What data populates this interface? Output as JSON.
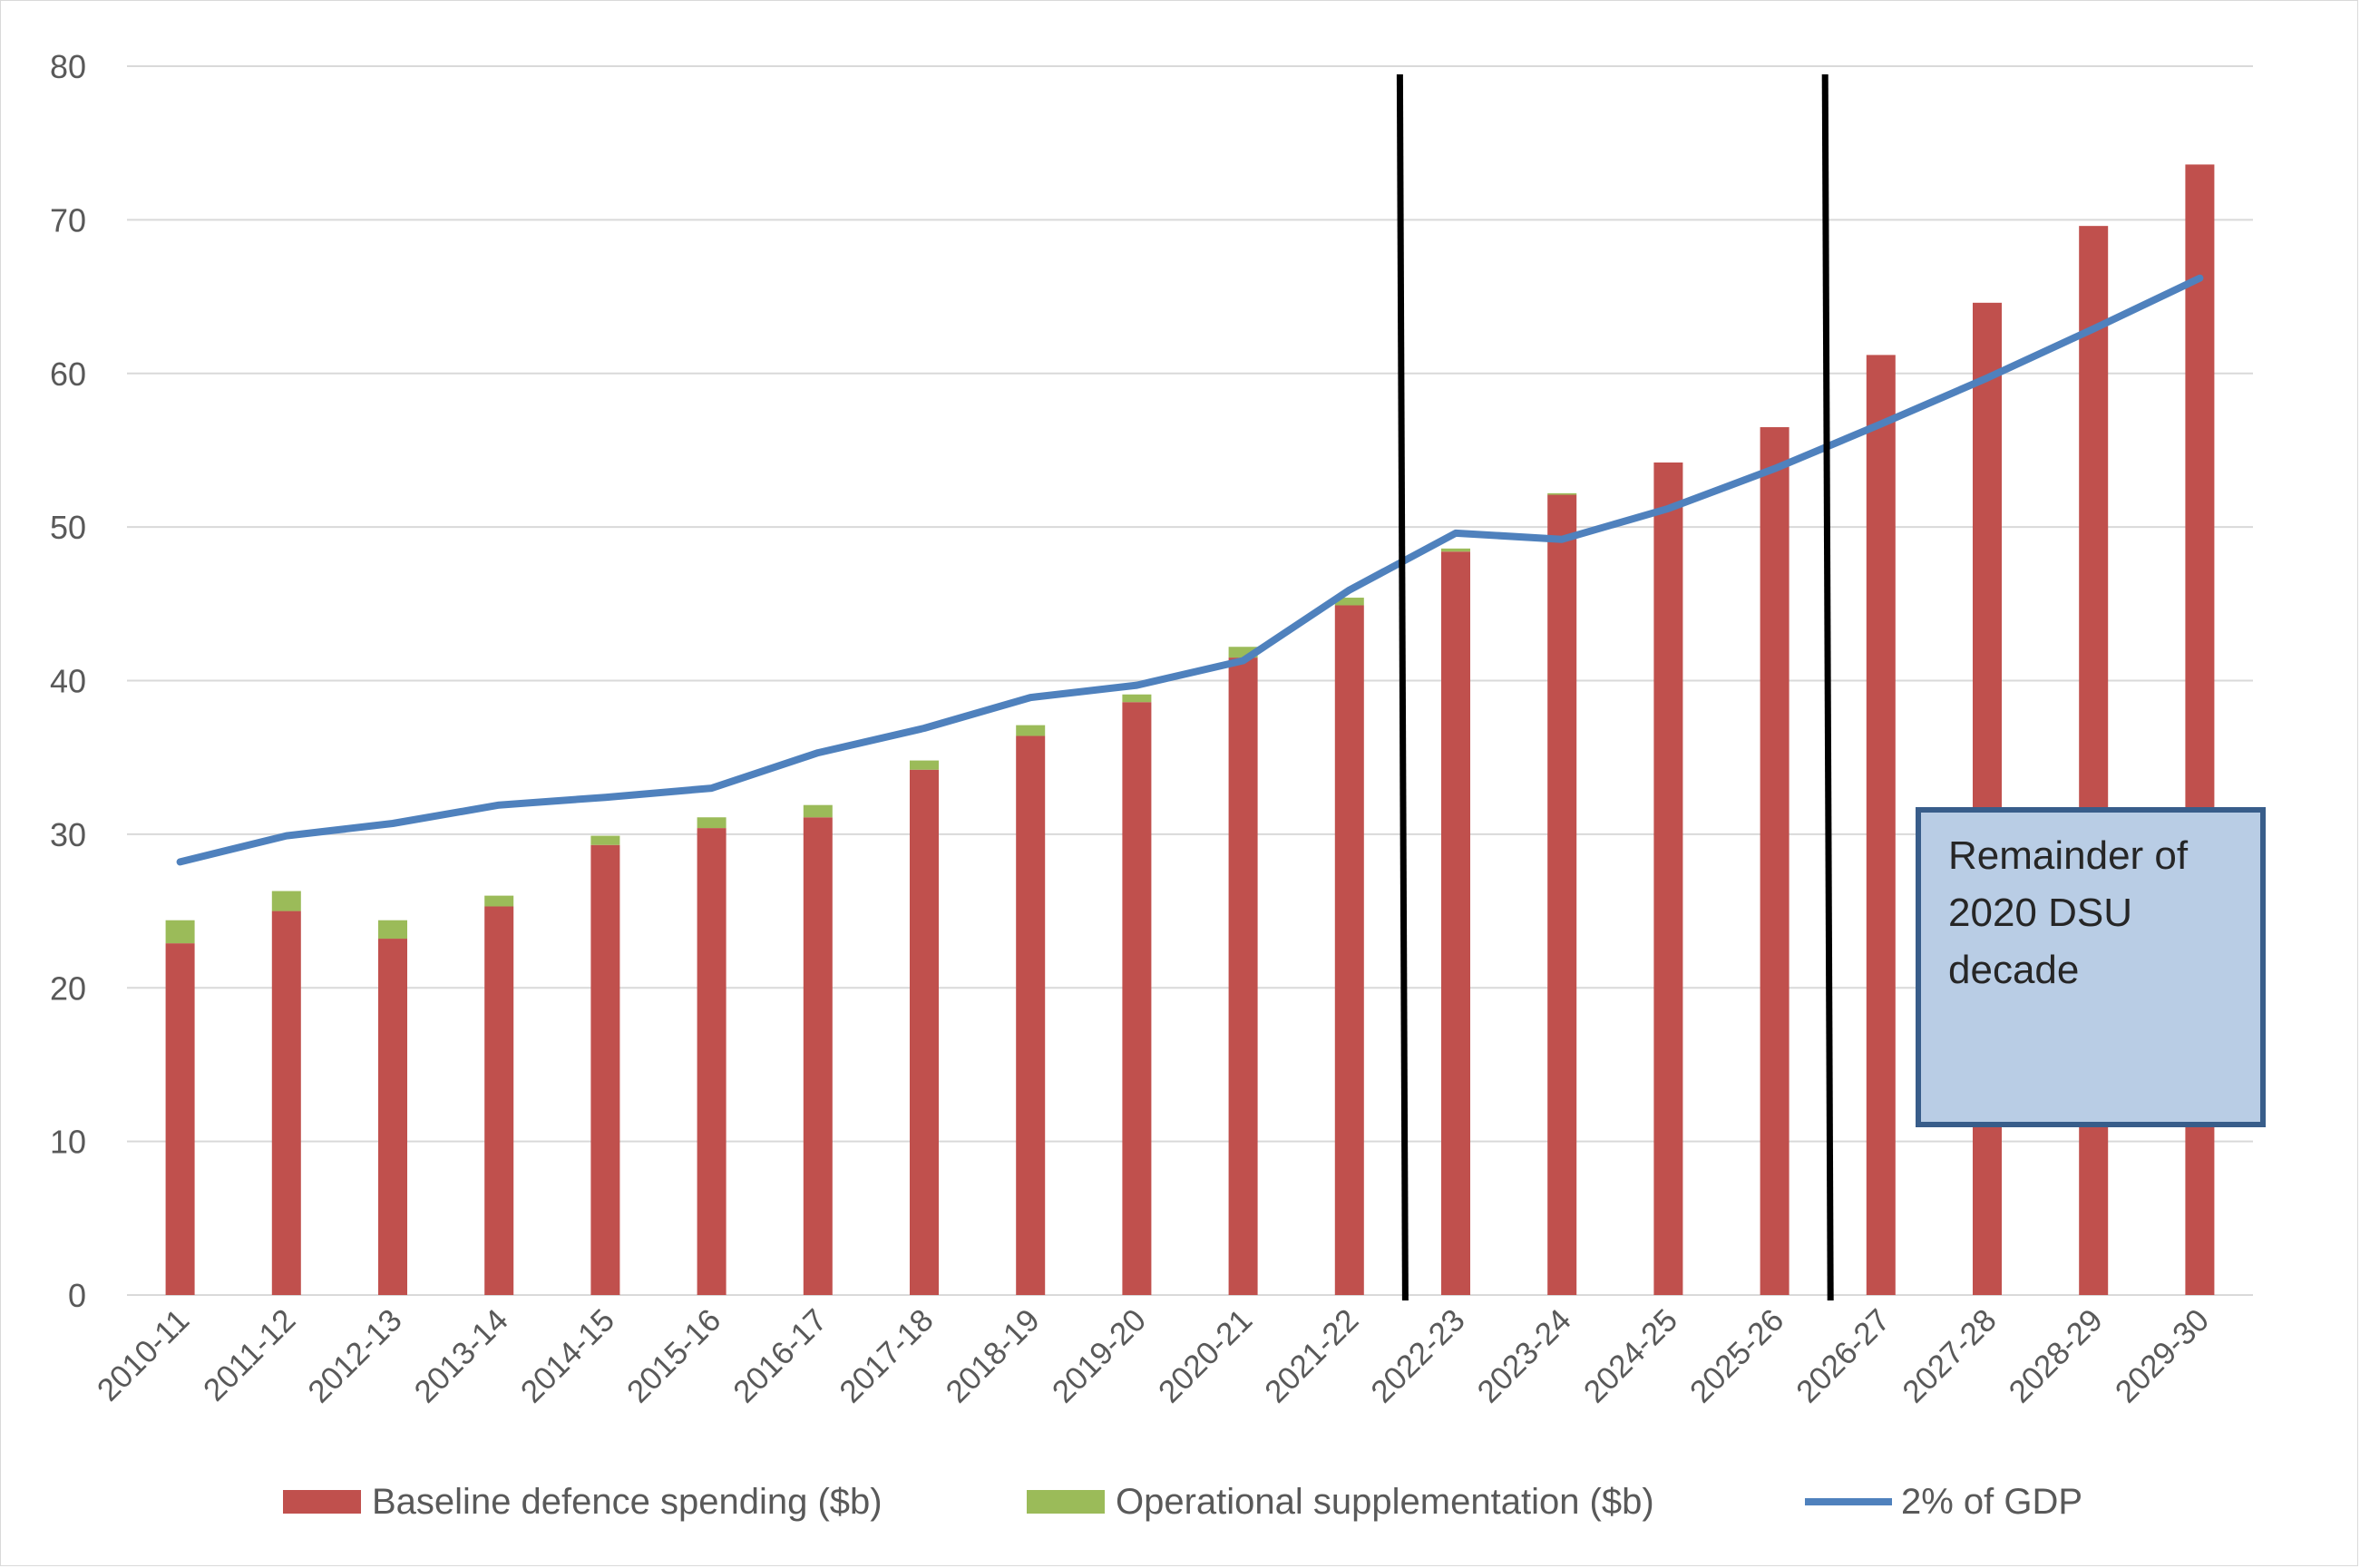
{
  "chart_data": {
    "type": "bar",
    "stacked": true,
    "categories": [
      "2010-11",
      "2011-12",
      "2012-13",
      "2013-14",
      "2014-15",
      "2015-16",
      "2016-17",
      "2017-18",
      "2018-19",
      "2019-20",
      "2020-21",
      "2021-22",
      "2022-23",
      "2023-24",
      "2024-25",
      "2025-26",
      "2026-27",
      "2027-28",
      "2028-29",
      "2029-30"
    ],
    "series": [
      {
        "name": "Baseline defence spending ($b)",
        "kind": "bar",
        "color": "#c0504d",
        "values": [
          22.9,
          25.0,
          23.2,
          25.3,
          29.3,
          30.4,
          31.1,
          34.2,
          36.4,
          38.6,
          41.5,
          44.9,
          48.4,
          52.1,
          54.2,
          56.5,
          61.2,
          64.6,
          69.6,
          73.6
        ]
      },
      {
        "name": "Operational supplementation ($b)",
        "kind": "bar",
        "color": "#9bbb59",
        "values": [
          1.5,
          1.3,
          1.2,
          0.7,
          0.6,
          0.7,
          0.8,
          0.6,
          0.7,
          0.5,
          0.7,
          0.5,
          0.2,
          0.1,
          0,
          0,
          0,
          0,
          0,
          0
        ]
      },
      {
        "name": "2% of GDP",
        "kind": "line",
        "color": "#4f81bd",
        "values": [
          28.2,
          29.9,
          30.7,
          31.9,
          32.4,
          33.0,
          35.3,
          36.9,
          38.9,
          39.7,
          41.3,
          45.9,
          49.6,
          49.2,
          51.2,
          53.8,
          56.7,
          59.7,
          62.9,
          66.2
        ]
      }
    ],
    "y_ticks": [
      "0",
      "10",
      "20",
      "30",
      "40",
      "50",
      "60",
      "70",
      "80"
    ],
    "ylim": [
      0,
      80
    ],
    "grid": true,
    "legend_position": "bottom",
    "annotation": {
      "lines": [
        "Remainder of",
        "2020 DSU",
        "decade"
      ],
      "fill": "#b9cde5",
      "border": "#385d8a"
    },
    "divider_after_categories": [
      "2021-22",
      "2025-26"
    ]
  }
}
